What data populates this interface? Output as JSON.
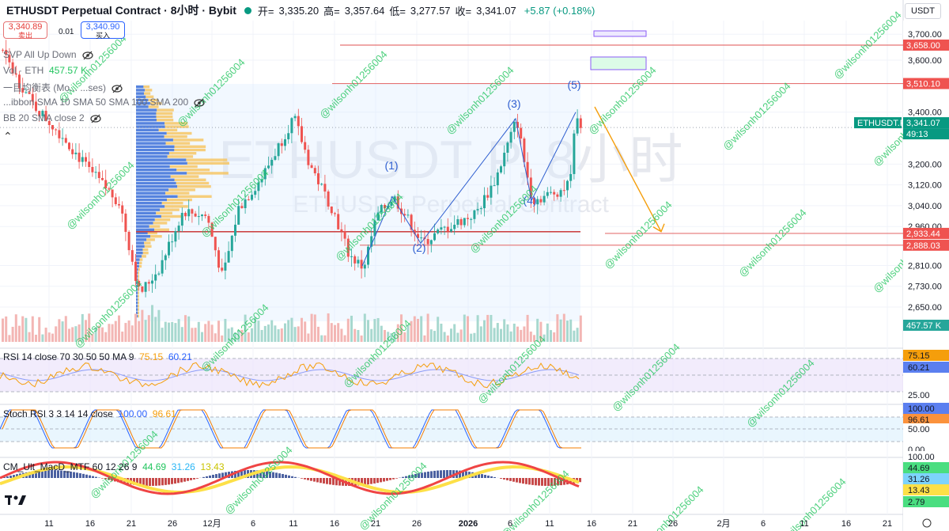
{
  "header": {
    "symbol": "ETHUSDT Perpetual Contract · 8小时 · Bybit",
    "open_label": "开=",
    "open": "3,335.20",
    "high_label": "高=",
    "high": "3,357.64",
    "low_label": "低=",
    "low": "3,277.57",
    "close_label": "收=",
    "close": "3,341.07",
    "change": "+5.87 (+0.18%)",
    "currency": "USDT"
  },
  "order_boxes": {
    "sell_price": "3,340.89",
    "sell_label": "卖出",
    "spread": "0.01",
    "buy_price": "3,340.90",
    "buy_label": "买入"
  },
  "indicators": {
    "svp": "SVP All Up Down",
    "vol": "Vol · ETH",
    "vol_value": "457.57 K",
    "ichimoku": "一目均衡表 (Mo... ...ses)",
    "sma": "...ibbon SMA 10 SMA 50 SMA 100 SMA 200",
    "bb": "BB 20 SMA close 2",
    "rsi_label": "RSI 14 close 70 30 50 50 MA 9",
    "rsi_v1": "75.15",
    "rsi_v2": "60.21",
    "stoch_label": "Stoch RSI 3 3 14 14 close",
    "stoch_v1": "100.00",
    "stoch_v2": "96.61",
    "macd_label": "CM_Ult_MacD_MTF 60 12 26 9",
    "macd_v1": "44.69",
    "macd_v2": "31.26",
    "macd_v3": "13.43",
    "macd_v4": "2.79"
  },
  "watermark": {
    "line1": "ETHUSDT P, 8小时",
    "line2": "ETHUSDT Perpetual Contract",
    "handle": "@wilsonh01256004"
  },
  "chart_data": {
    "type": "candlestick",
    "price_axis": {
      "ticks": [
        "3,700.00",
        "3,600.00",
        "3,400.00",
        "3,200.00",
        "3,120.00",
        "3,040.00",
        "2,960.00",
        "2,810.00",
        "2,730.00",
        "2,650.00"
      ],
      "ylim": [
        2550,
        3720
      ]
    },
    "labels_right": [
      {
        "text": "3,658.00",
        "kind": "level"
      },
      {
        "text": "3,510.10",
        "kind": "level"
      },
      {
        "text": "ETHUSDT.P",
        "kind": "symbol"
      },
      {
        "text": "3,341.07",
        "kind": "last"
      },
      {
        "text": "49:13",
        "kind": "countdown"
      },
      {
        "text": "2,933.44",
        "kind": "level"
      },
      {
        "text": "2,888.03",
        "kind": "level"
      },
      {
        "text": "457.57 K",
        "kind": "volume"
      }
    ],
    "x_ticks": [
      "11",
      "16",
      "21",
      "26",
      "12月",
      "6",
      "11",
      "16",
      "21",
      "26",
      "2026",
      "6",
      "11",
      "16",
      "21",
      "26",
      "2月",
      "6",
      "11",
      "16",
      "21"
    ],
    "horizontal_levels": [
      3658.0,
      3510.1,
      2933.44,
      2888.03
    ],
    "elliott_wave": [
      {
        "label": "(1)",
        "price": 3075
      },
      {
        "label": "(2)",
        "price": 2895
      },
      {
        "label": "(3)",
        "price": 3375
      },
      {
        "label": "(4)",
        "price": 3060
      },
      {
        "label": "(5)",
        "price": 3400
      }
    ],
    "projection_target": 2940,
    "rsi_axis": [
      "75.15",
      "60.21",
      "25.00"
    ],
    "stoch_axis": [
      "100.00",
      "96.61",
      "50.00",
      "0.00"
    ],
    "macd_axis": [
      "100.00",
      "44.69",
      "31.26",
      "13.43",
      "2.79"
    ]
  }
}
